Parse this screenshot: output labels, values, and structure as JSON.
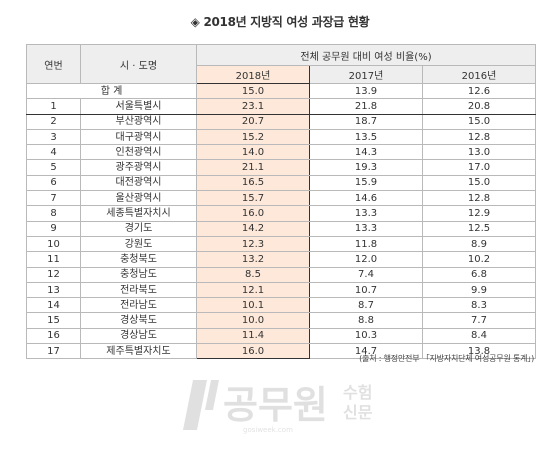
{
  "title": "◈ 2018년 지방직 여성 과장급 현황",
  "headers": {
    "no": "연번",
    "region": "시 · 도명",
    "group": "전체 공무원 대비 여성 비율(%)",
    "years": [
      "2018년",
      "2017년",
      "2016년"
    ]
  },
  "total": {
    "label": "합    계",
    "values": [
      "15.0",
      "13.9",
      "12.6"
    ]
  },
  "rows": [
    {
      "no": "1",
      "region": "서울특별시",
      "values": [
        "23.1",
        "21.8",
        "20.8"
      ]
    },
    {
      "no": "2",
      "region": "부산광역시",
      "values": [
        "20.7",
        "18.7",
        "15.0"
      ]
    },
    {
      "no": "3",
      "region": "대구광역시",
      "values": [
        "15.2",
        "13.5",
        "12.8"
      ]
    },
    {
      "no": "4",
      "region": "인천광역시",
      "values": [
        "14.0",
        "14.3",
        "13.0"
      ]
    },
    {
      "no": "5",
      "region": "광주광역시",
      "values": [
        "21.1",
        "19.3",
        "17.0"
      ]
    },
    {
      "no": "6",
      "region": "대전광역시",
      "values": [
        "16.5",
        "15.9",
        "15.0"
      ]
    },
    {
      "no": "7",
      "region": "울산광역시",
      "values": [
        "15.7",
        "14.6",
        "12.8"
      ]
    },
    {
      "no": "8",
      "region": "세종특별자치시",
      "values": [
        "16.0",
        "13.3",
        "12.9"
      ]
    },
    {
      "no": "9",
      "region": "경기도",
      "values": [
        "14.2",
        "13.3",
        "12.5"
      ]
    },
    {
      "no": "10",
      "region": "강원도",
      "values": [
        "12.3",
        "11.8",
        "8.9"
      ]
    },
    {
      "no": "11",
      "region": "충청북도",
      "values": [
        "13.2",
        "12.0",
        "10.2"
      ]
    },
    {
      "no": "12",
      "region": "충청남도",
      "values": [
        "8.5",
        "7.4",
        "6.8"
      ]
    },
    {
      "no": "13",
      "region": "전라북도",
      "values": [
        "12.1",
        "10.7",
        "9.9"
      ]
    },
    {
      "no": "14",
      "region": "전라남도",
      "values": [
        "10.1",
        "8.7",
        "8.3"
      ]
    },
    {
      "no": "15",
      "region": "경상북도",
      "values": [
        "10.0",
        "8.8",
        "7.7"
      ]
    },
    {
      "no": "16",
      "region": "경상남도",
      "values": [
        "11.4",
        "10.3",
        "8.4"
      ]
    },
    {
      "no": "17",
      "region": "제주특별자치도",
      "values": [
        "16.0",
        "14.7",
        "13.8"
      ]
    }
  ],
  "source": "(출처 : 행정안전부 「지방자치단체 여성공무원 통계」)",
  "watermark": {
    "main": "공무원",
    "sub1": "수험",
    "sub2": "신문",
    "url": "gosiweek.com"
  },
  "colors": {
    "highlight": "#fde8d9",
    "header_bg": "#eeeeee",
    "border": "#b9b9b9"
  }
}
